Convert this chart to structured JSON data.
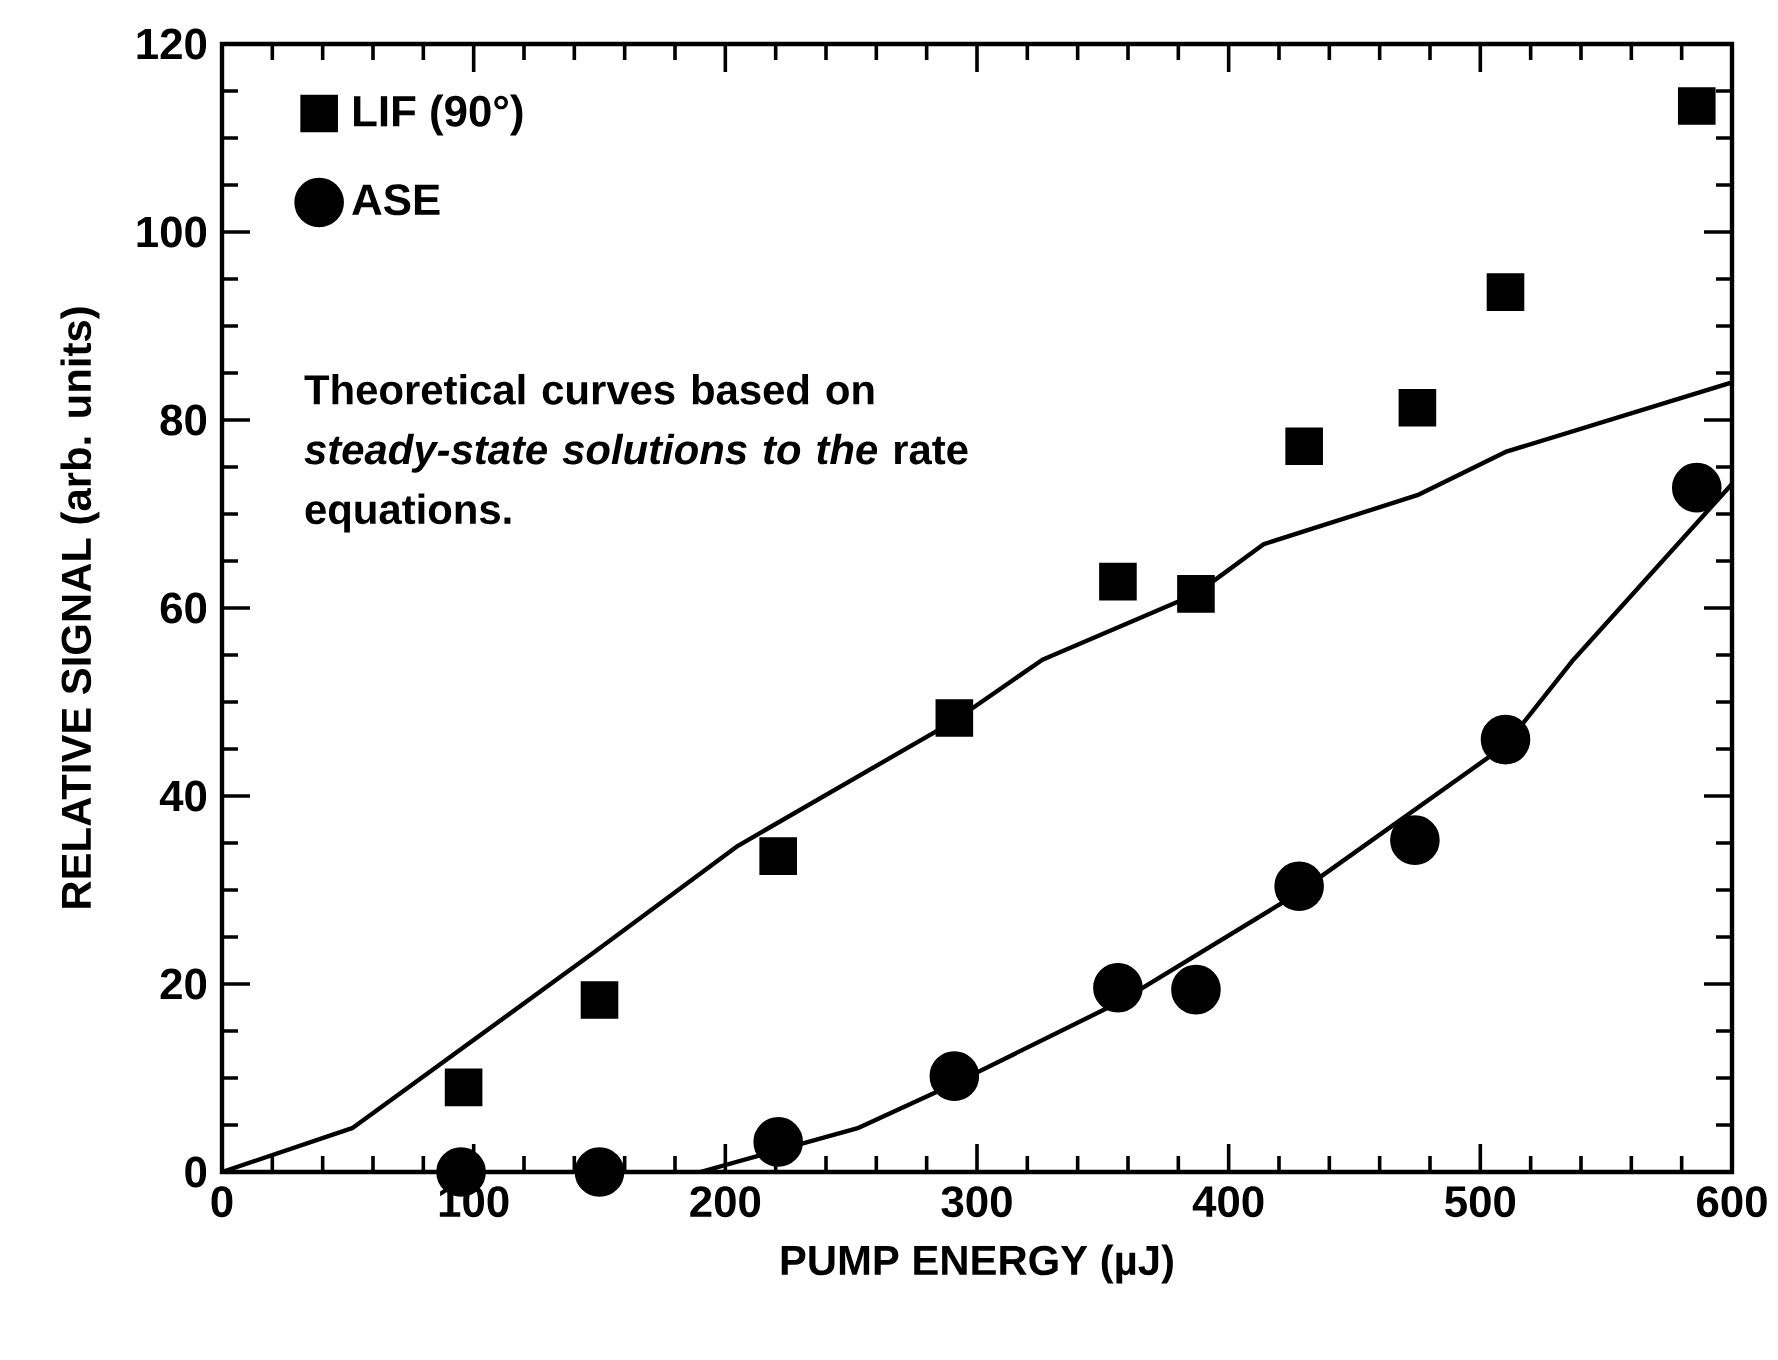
{
  "chart_data": {
    "type": "scatter",
    "xlabel": "PUMP ENERGY (µJ)",
    "ylabel": "RELATIVE SIGNAL (arb. units)",
    "xlim": [
      0,
      600
    ],
    "ylim": [
      0,
      120
    ],
    "xticks": [
      0,
      100,
      200,
      300,
      400,
      500,
      600
    ],
    "yticks": [
      0,
      20,
      40,
      60,
      80,
      100,
      120
    ],
    "legend": "top left",
    "grid": false,
    "annotations": [
      "Theoretical curves based on *steady-state solutions to the* rate equations."
    ],
    "series": [
      {
        "name": "LIF (90°)",
        "color": "#000000",
        "marker": "square",
        "x": [
          96,
          150,
          221,
          291,
          356,
          387,
          430,
          475,
          510,
          586
        ],
        "values": [
          9,
          18.3,
          33.6,
          48.3,
          62.8,
          61.5,
          77.2,
          81.3,
          93.6,
          113.4
        ]
      },
      {
        "name": "ASE",
        "color": "#000000",
        "marker": "circle",
        "x": [
          95,
          150,
          221,
          291,
          356,
          387,
          428,
          474,
          510,
          586
        ],
        "values": [
          0,
          0,
          3.2,
          10.2,
          19.6,
          19.4,
          30.4,
          35.3,
          46,
          72.8
        ]
      },
      {
        "type": "line",
        "color": "#000000",
        "marker": "none",
        "line_style": "solid",
        "x": [
          0,
          52,
          148,
          205,
          291,
          326,
          387,
          414,
          475,
          510,
          600
        ],
        "values": [
          0,
          4.7,
          23.4,
          34.7,
          48,
          54.5,
          61.5,
          66.8,
          72,
          76.6,
          84
        ]
      },
      {
        "type": "line",
        "color": "#000000",
        "marker": "none",
        "line_style": "solid",
        "x": [
          190,
          253,
          291,
          356,
          426,
          510,
          537,
          600
        ],
        "values": [
          0,
          4.7,
          9.4,
          18,
          29.4,
          45.4,
          54.5,
          73.2
        ]
      }
    ]
  }
}
